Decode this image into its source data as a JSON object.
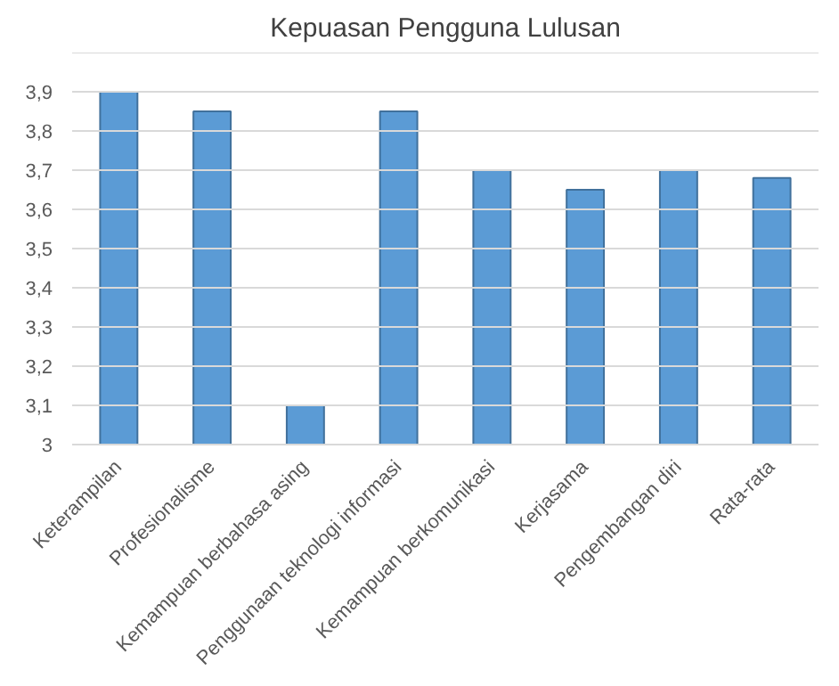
{
  "chart_data": {
    "type": "bar",
    "title": "Kepuasan Pengguna Lulusan",
    "categories": [
      "Keterampilan",
      "Profesionalisme",
      "Kemampuan berbahasa asing",
      "Penggunaan teknologi informasi",
      "Kemampuan berkomunikasi",
      "Kerjasama",
      "Pengembangan diri",
      "Rata-rata"
    ],
    "values": [
      3.9,
      3.85,
      3.1,
      3.85,
      3.7,
      3.65,
      3.7,
      3.68
    ],
    "color": "#5b9bd5",
    "ylim": [
      3,
      4
    ],
    "yticks": [
      3,
      {
        "value": 3.1,
        "label": "3,1"
      },
      {
        "value": 3.2,
        "label": "3,2"
      },
      {
        "value": 3.3,
        "label": "3,3"
      },
      {
        "value": 3.4,
        "label": "3,4"
      },
      {
        "value": 3.5,
        "label": "3,5"
      },
      {
        "value": 3.6,
        "label": "3,6"
      },
      {
        "value": 3.7,
        "label": "3,7"
      },
      {
        "value": 3.8,
        "label": "3,8"
      },
      {
        "value": 3.9,
        "label": "3,9"
      },
      {
        "value": 4,
        "label": null
      }
    ],
    "grid": "y"
  }
}
